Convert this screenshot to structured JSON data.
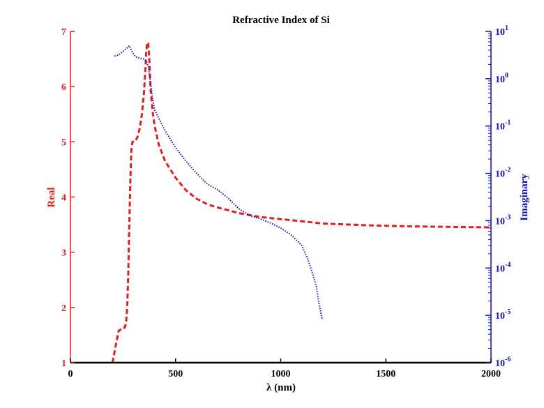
{
  "chart_data": {
    "type": "line",
    "title": "Refractive Index of Si",
    "xlabel": "λ (nm)",
    "ylabel_left": "Real",
    "ylabel_right": "Imaginary",
    "xlim": [
      0,
      2000
    ],
    "ylim_left": [
      1,
      7
    ],
    "ylim_right": [
      1e-06,
      10
    ],
    "yscale_right": "log",
    "grid": false,
    "legend": "none",
    "x_ticks": [
      "0",
      "500",
      "1000",
      "1500",
      "2000"
    ],
    "y_ticks_left": [
      "1",
      "2",
      "3",
      "4",
      "5",
      "6",
      "7"
    ],
    "y_ticks_right_exponents": [
      "-6",
      "-5",
      "-4",
      "-3",
      "-2",
      "-1",
      "0",
      "1"
    ],
    "colors": {
      "real": "#e02020",
      "imaginary": "#1010b0",
      "axes": "#000000"
    },
    "series": [
      {
        "axis": "left",
        "style": "dashed",
        "x": [
          200,
          210,
          220,
          230,
          240,
          250,
          260,
          265,
          270,
          275,
          280,
          285,
          290,
          295,
          300,
          305,
          310,
          320,
          330,
          340,
          350,
          355,
          360,
          365,
          370,
          375,
          380,
          390,
          400,
          420,
          450,
          500,
          550,
          600,
          650,
          700,
          800,
          900,
          1000,
          1100,
          1200,
          1400,
          1600,
          1800,
          2000
        ],
        "values": [
          1.0,
          1.2,
          1.4,
          1.58,
          1.6,
          1.6,
          1.65,
          1.75,
          2.0,
          2.6,
          3.5,
          4.3,
          4.85,
          5.0,
          5.0,
          5.0,
          5.02,
          5.1,
          5.25,
          5.5,
          5.9,
          6.2,
          6.6,
          6.8,
          6.78,
          6.5,
          6.0,
          5.57,
          5.3,
          4.95,
          4.65,
          4.35,
          4.12,
          3.97,
          3.87,
          3.81,
          3.71,
          3.64,
          3.6,
          3.56,
          3.52,
          3.49,
          3.47,
          3.46,
          3.45
        ]
      },
      {
        "axis": "right",
        "style": "dotted",
        "x": [
          210,
          230,
          250,
          270,
          280,
          290,
          300,
          310,
          330,
          350,
          360,
          370,
          380,
          390,
          400,
          450,
          500,
          550,
          600,
          650,
          700,
          750,
          800,
          850,
          900,
          950,
          1000,
          1050,
          1100,
          1130,
          1150,
          1170,
          1180,
          1190,
          1195,
          1200
        ],
        "values": [
          3.0,
          3.2,
          3.8,
          4.5,
          5.0,
          4.0,
          3.3,
          2.9,
          2.7,
          2.6,
          2.4,
          1.8,
          0.9,
          0.4,
          0.22,
          0.08,
          0.035,
          0.018,
          0.01,
          0.006,
          0.0045,
          0.003,
          0.0018,
          0.0013,
          0.0011,
          0.0009,
          0.0007,
          0.0005,
          0.0003,
          0.00015,
          8e-05,
          4e-05,
          2e-05,
          1.2e-05,
          9e-06,
          8e-06
        ]
      }
    ]
  }
}
